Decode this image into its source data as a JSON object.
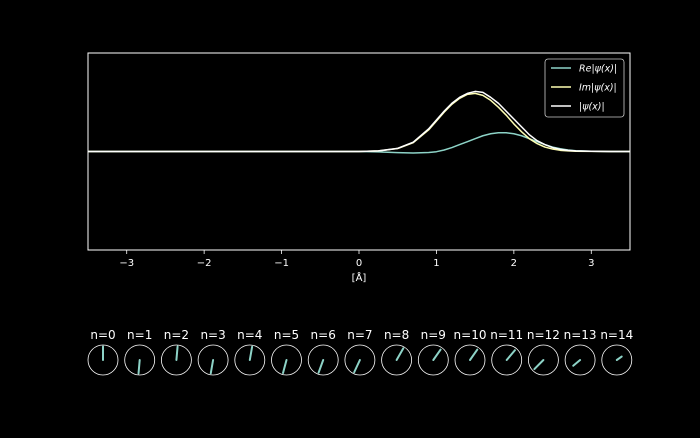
{
  "colors": {
    "background": "#000000",
    "axes": "#ffffff",
    "real": "#8dd3c7",
    "imag": "#ffffb3",
    "abs": "#ffffff"
  },
  "chart_data": [
    {
      "type": "line",
      "title": "",
      "xlabel": "[Å]",
      "ylabel": "",
      "xlim": [
        -3.5,
        3.5
      ],
      "ylim": [
        -1.0,
        1.0
      ],
      "xticks": [
        "−3",
        "−2",
        "−1",
        "0",
        "1",
        "2",
        "3"
      ],
      "xtick_values": [
        -3,
        -2,
        -1,
        0,
        1,
        2,
        3
      ],
      "grid": false,
      "legend": "top-right",
      "x": [
        -3.5,
        -3.0,
        -2.5,
        -2.0,
        -1.5,
        -1.0,
        -0.5,
        0.0,
        0.25,
        0.5,
        0.7,
        0.9,
        1.0,
        1.1,
        1.2,
        1.3,
        1.4,
        1.5,
        1.6,
        1.7,
        1.8,
        1.9,
        2.0,
        2.1,
        2.2,
        2.3,
        2.4,
        2.5,
        2.6,
        2.7,
        2.8,
        3.0,
        3.25,
        3.5
      ],
      "series": [
        {
          "name": "Re|ψ(x)|",
          "values": [
            0,
            0,
            0,
            0,
            0,
            0,
            0,
            0,
            -0.004,
            -0.012,
            -0.015,
            -0.01,
            -0.002,
            0.015,
            0.04,
            0.07,
            0.1,
            0.13,
            0.16,
            0.18,
            0.19,
            0.19,
            0.18,
            0.16,
            0.13,
            0.1,
            0.07,
            0.045,
            0.028,
            0.015,
            0.008,
            0.002,
            0.0005,
            0
          ]
        },
        {
          "name": "Im|ψ(x)|",
          "values": [
            0,
            0,
            0,
            0,
            0,
            0,
            0,
            0.0,
            0.006,
            0.03,
            0.09,
            0.22,
            0.31,
            0.4,
            0.48,
            0.54,
            0.58,
            0.59,
            0.57,
            0.52,
            0.45,
            0.37,
            0.28,
            0.2,
            0.13,
            0.08,
            0.045,
            0.025,
            0.012,
            0.006,
            0.003,
            0.001,
            0,
            0
          ]
        },
        {
          "name": "|ψ(x)|",
          "values": [
            0,
            0,
            0,
            0,
            0,
            0,
            0,
            0.0,
            0.006,
            0.032,
            0.095,
            0.23,
            0.32,
            0.41,
            0.49,
            0.55,
            0.59,
            0.61,
            0.6,
            0.55,
            0.49,
            0.41,
            0.33,
            0.25,
            0.17,
            0.11,
            0.07,
            0.04,
            0.022,
            0.012,
            0.006,
            0.002,
            0.0005,
            0
          ]
        }
      ]
    },
    {
      "type": "phasor",
      "labels": [
        "n=0",
        "n=1",
        "n=2",
        "n=3",
        "n=4",
        "n=5",
        "n=6",
        "n=7",
        "n=8",
        "n=9",
        "n=10",
        "n=11",
        "n=12",
        "n=13",
        "n=14"
      ],
      "angles_deg": [
        90,
        265,
        85,
        260,
        80,
        255,
        250,
        245,
        60,
        55,
        55,
        50,
        225,
        220,
        35
      ],
      "magnitudes": [
        0.9,
        0.9,
        0.9,
        0.9,
        0.9,
        0.9,
        0.9,
        0.9,
        0.9,
        0.85,
        0.85,
        0.85,
        0.85,
        0.6,
        0.4
      ]
    }
  ]
}
